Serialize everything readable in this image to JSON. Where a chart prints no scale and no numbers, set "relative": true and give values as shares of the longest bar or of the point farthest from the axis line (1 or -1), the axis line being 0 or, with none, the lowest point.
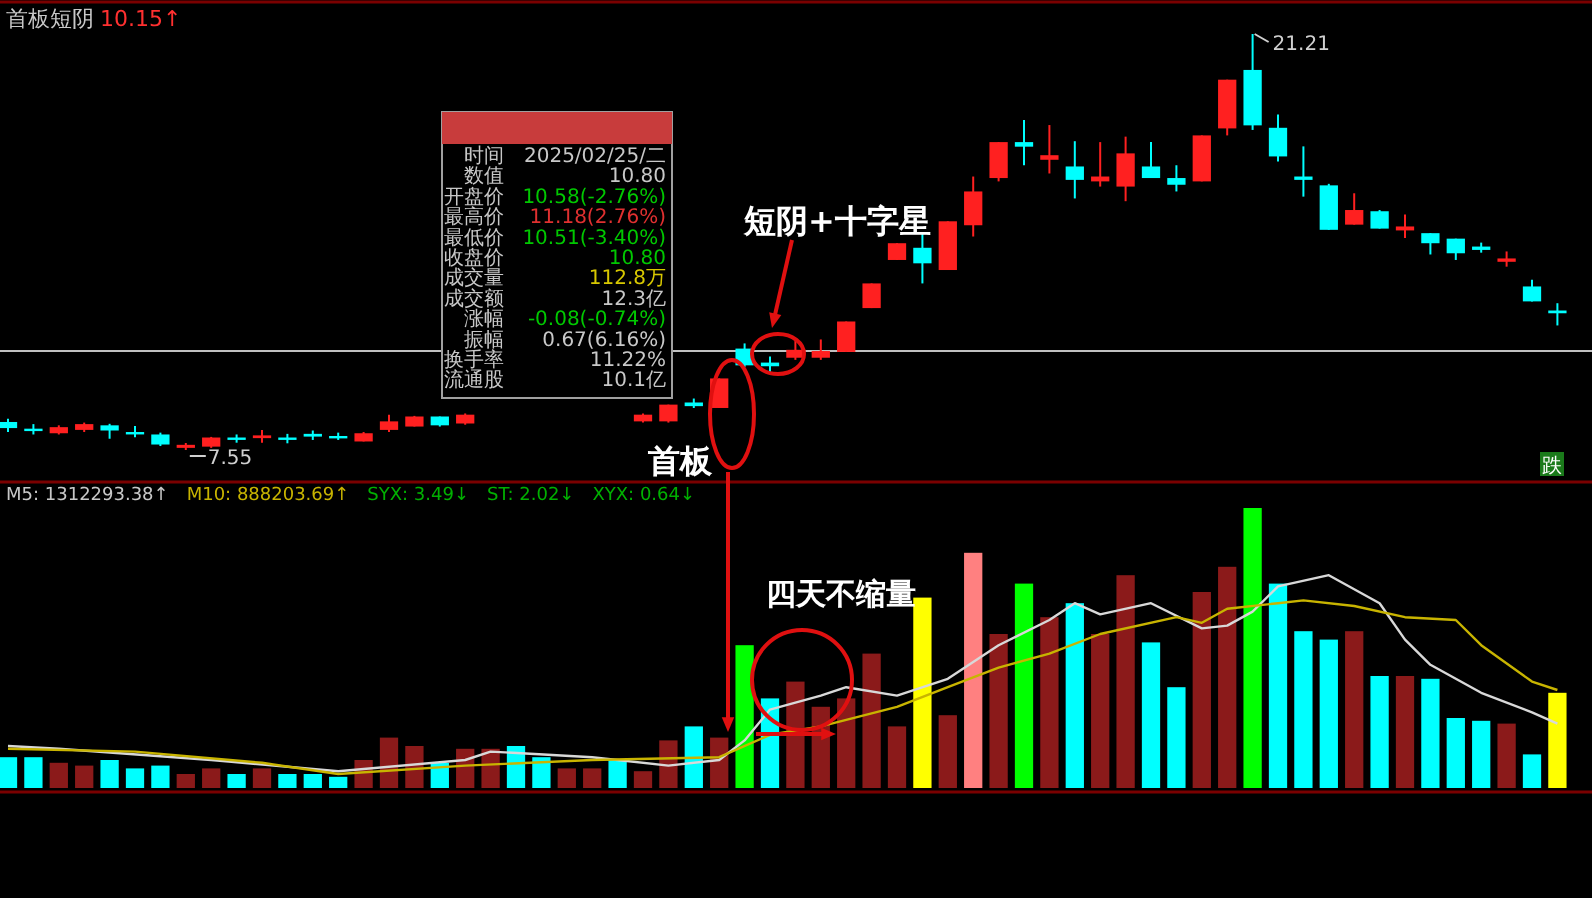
{
  "chart_data": [
    {
      "type": "candlestick",
      "title": "首板短阴",
      "tick_labels": false,
      "categories": [
        null,
        null,
        null,
        null,
        null,
        null,
        null,
        null,
        null,
        null,
        null,
        null,
        null,
        null,
        null,
        null,
        null,
        null,
        null,
        null,
        null,
        null,
        null,
        null,
        null,
        null,
        null,
        null,
        null,
        null,
        null,
        null,
        null,
        null,
        null,
        null,
        null,
        null,
        null,
        null,
        null,
        null,
        null,
        null,
        null,
        null,
        null,
        null,
        null,
        null,
        null,
        null,
        null,
        null,
        null,
        null,
        null,
        null,
        null,
        null,
        null,
        null
      ],
      "ohlc": [
        [
          8.47,
          8.58,
          8.14,
          8.27
        ],
        [
          8.25,
          8.4,
          8.06,
          8.19
        ],
        [
          8.1,
          8.36,
          8.06,
          8.3
        ],
        [
          8.21,
          8.45,
          8.14,
          8.4
        ],
        [
          8.36,
          8.41,
          7.92,
          8.19
        ],
        [
          8.14,
          8.34,
          7.97,
          8.08
        ],
        [
          8.06,
          8.12,
          7.68,
          7.73
        ],
        [
          7.62,
          7.78,
          7.55,
          7.72
        ],
        [
          7.66,
          7.98,
          7.62,
          7.96
        ],
        [
          7.96,
          8.06,
          7.79,
          7.9
        ],
        [
          7.94,
          8.21,
          7.79,
          8.03
        ],
        [
          7.96,
          8.08,
          7.77,
          7.9
        ],
        [
          8.08,
          8.19,
          7.88,
          7.99
        ],
        [
          8.01,
          8.12,
          7.88,
          7.94
        ],
        [
          7.83,
          8.14,
          7.83,
          8.1
        ],
        [
          8.21,
          8.71,
          8.14,
          8.49
        ],
        [
          8.32,
          8.67,
          8.32,
          8.65
        ],
        [
          8.65,
          8.65,
          8.32,
          8.36
        ],
        [
          8.42,
          8.75,
          8.38,
          8.71
        ],
        null,
        null,
        null,
        null,
        null,
        null,
        [
          8.49,
          8.75,
          8.45,
          8.71
        ],
        [
          8.49,
          9.04,
          8.45,
          9.04
        ],
        [
          9.11,
          9.24,
          8.93,
          8.99
        ],
        [
          8.93,
          9.9,
          8.93,
          9.9
        ],
        [
          10.88,
          11.05,
          10.28,
          10.33
        ],
        [
          10.42,
          10.62,
          10.11,
          10.3
        ],
        [
          10.58,
          11.16,
          10.51,
          10.84
        ],
        [
          10.58,
          11.18,
          10.51,
          10.8
        ],
        [
          10.77,
          11.77,
          10.77,
          11.77
        ],
        [
          12.21,
          13.02,
          12.21,
          13.02
        ],
        [
          13.79,
          14.34,
          13.79,
          14.34
        ],
        [
          14.19,
          14.67,
          13.02,
          13.68
        ],
        [
          13.46,
          15.06,
          13.46,
          15.06
        ],
        [
          14.93,
          16.53,
          14.56,
          16.04
        ],
        [
          16.48,
          17.66,
          16.37,
          17.66
        ],
        [
          17.66,
          18.39,
          16.9,
          17.51
        ],
        [
          17.08,
          18.22,
          16.63,
          17.23
        ],
        [
          16.86,
          17.69,
          15.81,
          16.42
        ],
        [
          16.37,
          17.66,
          16.2,
          16.53
        ],
        [
          16.2,
          17.84,
          15.72,
          17.29
        ],
        [
          16.86,
          17.66,
          16.48,
          16.48
        ],
        [
          16.48,
          16.9,
          16.04,
          16.26
        ],
        [
          16.37,
          17.88,
          16.37,
          17.88
        ],
        [
          18.11,
          19.71,
          17.88,
          19.71
        ],
        [
          20.03,
          21.21,
          18.06,
          18.21
        ],
        [
          18.13,
          18.57,
          17.02,
          17.19
        ],
        [
          16.53,
          17.52,
          15.87,
          16.42
        ],
        [
          16.24,
          16.29,
          14.78,
          14.78
        ],
        [
          14.95,
          15.98,
          14.95,
          15.43
        ],
        [
          15.39,
          15.43,
          14.82,
          14.82
        ],
        [
          14.76,
          15.28,
          14.51,
          14.89
        ],
        [
          14.67,
          14.67,
          13.97,
          14.34
        ],
        [
          14.49,
          14.49,
          13.79,
          14.01
        ],
        [
          14.23,
          14.36,
          14.03,
          14.12
        ],
        [
          13.73,
          14.07,
          13.57,
          13.84
        ],
        [
          12.92,
          13.14,
          12.43,
          12.43
        ],
        [
          12.13,
          12.37,
          11.64,
          12.04
        ]
      ],
      "ref_lines": [
        {
          "axis": "y",
          "value": 10.8,
          "color": "#c0c0c0"
        }
      ],
      "annotations": [
        "10.15↑",
        "7.55",
        "21.21",
        "短阴+十字星",
        "首板",
        "跌"
      ]
    },
    {
      "type": "other",
      "annotations": [
        "时间",
        "2025/02/25/二",
        "数值",
        "10.80",
        "开盘价",
        "10.58(-2.76%)",
        "最高价",
        "11.18(2.76%)",
        "最低价",
        "10.51(-3.40%)",
        "收盘价",
        "10.80",
        "成交量",
        "112.8万",
        "成交额",
        "12.3亿",
        "涨幅",
        "-0.08(-0.74%)",
        "振幅",
        "0.67(6.16%)",
        "换手率",
        "11.22%",
        "流通股",
        "10.1亿"
      ]
    },
    {
      "type": "bar",
      "relative": true,
      "tick_labels": false,
      "categories": [
        null,
        null,
        null,
        null,
        null,
        null,
        null,
        null,
        null,
        null,
        null,
        null,
        null,
        null,
        null,
        null,
        null,
        null,
        null,
        null,
        null,
        null,
        null,
        null,
        null,
        null,
        null,
        null,
        null,
        null,
        null,
        null,
        null,
        null,
        null,
        null,
        null,
        null,
        null,
        null,
        null,
        null,
        null,
        null,
        null,
        null,
        null,
        null,
        null,
        null,
        null,
        null,
        null,
        null,
        null,
        null,
        null,
        null,
        null,
        null,
        null,
        null
      ],
      "series": [
        {
          "type": "bar",
          "values": [
            0.11,
            0.11,
            0.09,
            0.08,
            0.1,
            0.07,
            0.08,
            0.05,
            0.07,
            0.05,
            0.07,
            0.05,
            0.05,
            0.04,
            0.1,
            0.18,
            0.15,
            0.09,
            0.14,
            0.14,
            0.15,
            0.11,
            0.07,
            0.07,
            0.1,
            0.06,
            0.17,
            0.22,
            0.18,
            0.51,
            0.32,
            0.38,
            0.29,
            0.32,
            0.48,
            0.22,
            0.68,
            0.26,
            0.84,
            0.55,
            0.73,
            0.61,
            0.66,
            0.55,
            0.76,
            0.52,
            0.36,
            0.7,
            0.79,
            1,
            0.73,
            0.56,
            0.53,
            0.56,
            0.4,
            0.4,
            0.39,
            0.25,
            0.24,
            0.23,
            0.12,
            0.34
          ],
          "colors": [
            "#00ffff",
            "#00ffff",
            "#8b1a1a",
            "#8b1a1a",
            "#00ffff",
            "#00ffff",
            "#00ffff",
            "#8b1a1a",
            "#8b1a1a",
            "#00ffff",
            "#8b1a1a",
            "#00ffff",
            "#00ffff",
            "#00ffff",
            "#8b1a1a",
            "#8b1a1a",
            "#8b1a1a",
            "#00ffff",
            "#8b1a1a",
            "#8b1a1a",
            "#00ffff",
            "#00ffff",
            "#8b1a1a",
            "#8b1a1a",
            "#00ffff",
            "#8b1a1a",
            "#8b1a1a",
            "#00ffff",
            "#8b1a1a",
            "#00ff00",
            "#00ffff",
            "#8b1a1a",
            "#8b1a1a",
            "#8b1a1a",
            "#8b1a1a",
            "#8b1a1a",
            "#ffff00",
            "#8b1a1a",
            "#ff8080",
            "#8b1a1a",
            "#00ff00",
            "#8b1a1a",
            "#00ffff",
            "#8b1a1a",
            "#8b1a1a",
            "#00ffff",
            "#00ffff",
            "#8b1a1a",
            "#8b1a1a",
            "#00ff00",
            "#00ffff",
            "#00ffff",
            "#00ffff",
            "#8b1a1a",
            "#00ffff",
            "#8b1a1a",
            "#00ffff",
            "#00ffff",
            "#00ffff",
            "#8b1a1a",
            "#00ffff",
            "#ffff00"
          ]
        },
        {
          "type": "line",
          "color": "#d8d8d8",
          "values": [
            0.15,
            null,
            0.14,
            null,
            null,
            null,
            null,
            null,
            0.1,
            null,
            null,
            null,
            null,
            0.06,
            null,
            null,
            null,
            null,
            0.1,
            0.13,
            null,
            null,
            null,
            0.11,
            null,
            null,
            0.08,
            null,
            0.1,
            0.17,
            0.28,
            null,
            0.33,
            0.36,
            null,
            0.33,
            null,
            0.39,
            null,
            0.51,
            null,
            0.6,
            0.66,
            0.62,
            null,
            0.66,
            null,
            0.57,
            0.58,
            0.63,
            0.72,
            null,
            0.76,
            null,
            0.66,
            0.53,
            0.44,
            null,
            0.34,
            null,
            0.27,
            0.23
          ]
        },
        {
          "type": "line",
          "color": "#c8b400",
          "values": [
            0.14,
            null,
            null,
            null,
            null,
            0.13,
            null,
            null,
            null,
            null,
            0.09,
            null,
            null,
            0.05,
            null,
            null,
            null,
            null,
            0.08,
            null,
            null,
            null,
            null,
            0.1,
            null,
            null,
            null,
            null,
            0.11,
            null,
            0.19,
            null,
            0.22,
            null,
            null,
            0.29,
            null,
            0.36,
            null,
            0.43,
            null,
            0.48,
            null,
            0.55,
            null,
            null,
            0.61,
            0.59,
            0.64,
            null,
            0.66,
            0.67,
            null,
            0.65,
            null,
            0.61,
            null,
            0.6,
            0.51,
            null,
            0.38,
            0.35
          ]
        }
      ],
      "annotations": [
        "M5: 1312293.38↑",
        "M10: 888203.69↑",
        "SYX: 3.49↓",
        "ST: 2.02↓",
        "XYX: 0.64↓",
        "四天不缩量"
      ]
    }
  ]
}
